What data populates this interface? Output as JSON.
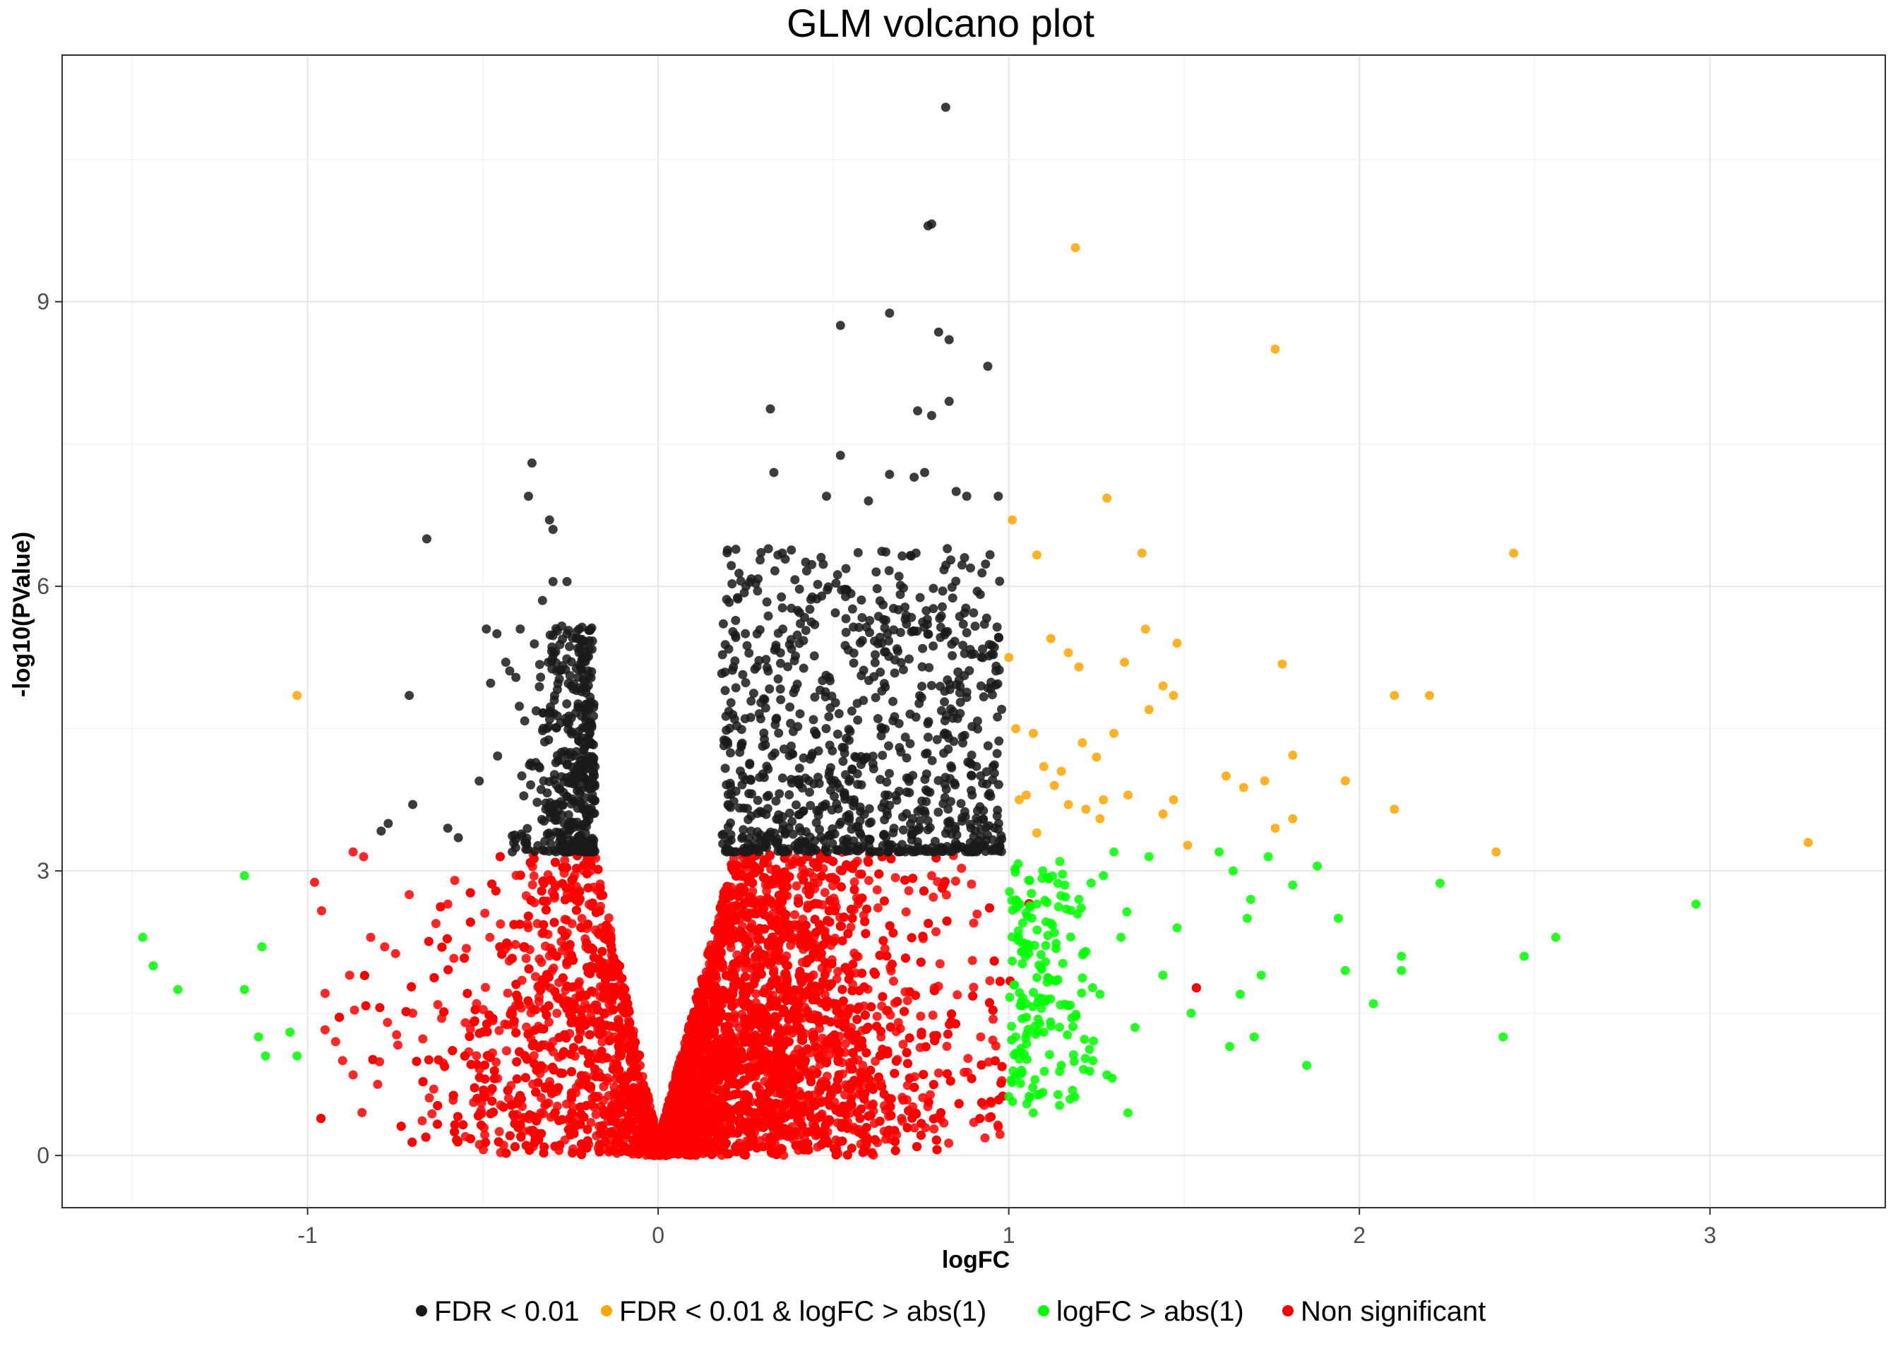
{
  "chart_data": {
    "type": "scatter",
    "title": "GLM volcano plot",
    "xlabel": "logFC",
    "ylabel": "-log10(PValue)",
    "xlim": [
      -1.7,
      3.5
    ],
    "ylim": [
      -0.55,
      11.6
    ],
    "x_ticks": [
      -1,
      0,
      1,
      2,
      3
    ],
    "x_tick_labels": [
      "-1",
      "0",
      "1",
      "2",
      "3"
    ],
    "y_ticks": [
      0,
      3,
      6,
      9
    ],
    "y_tick_labels": [
      "0",
      "3",
      "6",
      "9"
    ],
    "grid": true,
    "legend_position": "bottom",
    "series": [
      {
        "name": "FDR < 0.01",
        "color": "#1a1a1a",
        "points": [
          [
            0.82,
            11.05
          ],
          [
            0.78,
            9.82
          ],
          [
            0.77,
            9.8
          ],
          [
            0.66,
            8.88
          ],
          [
            0.52,
            8.75
          ],
          [
            0.8,
            8.68
          ],
          [
            0.83,
            8.6
          ],
          [
            0.94,
            8.32
          ],
          [
            0.32,
            7.87
          ],
          [
            0.83,
            7.95
          ],
          [
            0.74,
            7.85
          ],
          [
            0.78,
            7.8
          ],
          [
            0.52,
            7.38
          ],
          [
            0.33,
            7.2
          ],
          [
            0.66,
            7.18
          ],
          [
            0.73,
            7.15
          ],
          [
            0.76,
            7.2
          ],
          [
            -0.36,
            7.3
          ],
          [
            -0.37,
            6.95
          ],
          [
            -0.31,
            6.7
          ],
          [
            -0.66,
            6.5
          ],
          [
            -0.3,
            6.6
          ],
          [
            0.48,
            6.95
          ],
          [
            0.6,
            6.9
          ],
          [
            0.85,
            7.0
          ],
          [
            0.88,
            6.95
          ],
          [
            0.97,
            6.95
          ],
          [
            -0.71,
            4.85
          ],
          [
            -0.7,
            3.7
          ],
          [
            -0.77,
            3.5
          ],
          [
            -0.79,
            3.42
          ],
          [
            -0.6,
            3.45
          ],
          [
            -0.57,
            3.35
          ],
          [
            -0.3,
            6.05
          ],
          [
            -0.26,
            6.05
          ],
          [
            -0.33,
            5.85
          ],
          [
            -0.49,
            5.55
          ],
          [
            -0.46,
            5.5
          ],
          [
            -0.22,
            5.15
          ],
          [
            -0.19,
            5.1
          ]
        ]
      },
      {
        "name": "FDR < 0.01 & logFC > abs(1)",
        "color": "#ffa500",
        "points": [
          [
            -1.03,
            4.85
          ],
          [
            1.19,
            9.57
          ],
          [
            1.76,
            8.5
          ],
          [
            1.28,
            6.93
          ],
          [
            1.01,
            6.7
          ],
          [
            1.38,
            6.35
          ],
          [
            1.08,
            6.33
          ],
          [
            2.44,
            6.35
          ],
          [
            1.39,
            5.55
          ],
          [
            1.12,
            5.45
          ],
          [
            1.48,
            5.4
          ],
          [
            1.17,
            5.3
          ],
          [
            1.0,
            5.25
          ],
          [
            1.2,
            5.15
          ],
          [
            1.33,
            5.2
          ],
          [
            1.78,
            5.18
          ],
          [
            2.1,
            4.85
          ],
          [
            2.2,
            4.85
          ],
          [
            1.44,
            4.95
          ],
          [
            1.47,
            4.85
          ],
          [
            1.4,
            4.7
          ],
          [
            1.02,
            4.5
          ],
          [
            1.07,
            4.45
          ],
          [
            1.3,
            4.45
          ],
          [
            1.21,
            4.35
          ],
          [
            1.15,
            4.05
          ],
          [
            1.1,
            4.1
          ],
          [
            1.25,
            4.2
          ],
          [
            1.81,
            4.22
          ],
          [
            1.62,
            4.0
          ],
          [
            1.73,
            3.95
          ],
          [
            1.96,
            3.95
          ],
          [
            1.67,
            3.88
          ],
          [
            1.05,
            3.8
          ],
          [
            1.03,
            3.75
          ],
          [
            1.17,
            3.7
          ],
          [
            1.27,
            3.75
          ],
          [
            1.22,
            3.65
          ],
          [
            1.47,
            3.75
          ],
          [
            1.44,
            3.6
          ],
          [
            1.81,
            3.55
          ],
          [
            2.1,
            3.65
          ],
          [
            1.76,
            3.45
          ],
          [
            1.08,
            3.4
          ],
          [
            1.51,
            3.27
          ],
          [
            2.39,
            3.2
          ],
          [
            3.28,
            3.3
          ],
          [
            1.13,
            3.9
          ],
          [
            1.34,
            3.8
          ],
          [
            1.26,
            3.55
          ]
        ]
      },
      {
        "name": "logFC > abs(1)",
        "color": "#00ff00",
        "points": [
          [
            -1.47,
            2.3
          ],
          [
            -1.44,
            2.0
          ],
          [
            -1.37,
            1.75
          ],
          [
            -1.18,
            2.95
          ],
          [
            -1.13,
            2.2
          ],
          [
            -1.18,
            1.75
          ],
          [
            -1.14,
            1.25
          ],
          [
            -1.05,
            1.3
          ],
          [
            -1.12,
            1.05
          ],
          [
            -1.03,
            1.05
          ],
          [
            2.23,
            2.87
          ],
          [
            2.96,
            2.65
          ],
          [
            2.56,
            2.3
          ],
          [
            2.47,
            2.1
          ],
          [
            2.41,
            1.25
          ],
          [
            2.12,
            2.1
          ],
          [
            2.12,
            1.95
          ],
          [
            2.04,
            1.6
          ],
          [
            1.96,
            1.95
          ],
          [
            1.94,
            2.5
          ],
          [
            1.88,
            3.05
          ],
          [
            1.85,
            0.95
          ],
          [
            1.81,
            2.85
          ],
          [
            1.74,
            3.15
          ],
          [
            1.72,
            1.9
          ],
          [
            1.69,
            2.7
          ],
          [
            1.68,
            2.5
          ],
          [
            1.66,
            1.7
          ],
          [
            1.64,
            3.0
          ],
          [
            1.6,
            3.2
          ],
          [
            1.7,
            1.25
          ],
          [
            1.63,
            1.15
          ],
          [
            1.52,
            1.5
          ],
          [
            1.48,
            2.4
          ],
          [
            1.4,
            3.15
          ],
          [
            1.34,
            0.45
          ],
          [
            1.3,
            3.2
          ],
          [
            1.27,
            2.95
          ],
          [
            1.24,
            1.0
          ],
          [
            1.2,
            2.7
          ],
          [
            1.16,
            2.85
          ],
          [
            1.12,
            1.85
          ],
          [
            1.08,
            2.65
          ],
          [
            1.05,
            1.6
          ],
          [
            1.03,
            0.85
          ],
          [
            1.02,
            1.25
          ],
          [
            1.07,
            0.45
          ],
          [
            1.04,
            2.45
          ],
          [
            1.1,
            1.3
          ],
          [
            1.15,
            0.95
          ],
          [
            1.22,
            2.15
          ],
          [
            1.26,
            1.7
          ],
          [
            1.32,
            2.3
          ],
          [
            1.36,
            1.35
          ],
          [
            1.44,
            1.9
          ],
          [
            1.01,
            2.05
          ],
          [
            1.06,
            2.9
          ],
          [
            1.13,
            2.35
          ],
          [
            1.18,
            1.45
          ],
          [
            1.28,
            0.85
          ]
        ]
      },
      {
        "name": "Non significant",
        "color": "#ff0000",
        "points": [
          [
            -0.98,
            2.88
          ],
          [
            -0.96,
            2.58
          ],
          [
            -0.87,
            3.2
          ],
          [
            -0.84,
            3.15
          ],
          [
            -0.71,
            2.75
          ],
          [
            -0.6,
            2.65
          ],
          [
            -0.58,
            2.9
          ],
          [
            -0.82,
            2.3
          ],
          [
            -0.78,
            2.2
          ],
          [
            -0.88,
            1.9
          ],
          [
            -0.9,
            1.0
          ],
          [
            -0.92,
            1.2
          ],
          [
            -0.87,
            0.85
          ],
          [
            -0.8,
            0.75
          ],
          [
            -0.7,
            1.5
          ],
          [
            -0.64,
            0.7
          ],
          [
            -0.55,
            1.4
          ],
          [
            -0.48,
            2.3
          ],
          [
            -0.4,
            0.55
          ],
          [
            -0.3,
            1.2
          ],
          [
            0.92,
            1.25
          ],
          [
            0.9,
            2.45
          ],
          [
            0.95,
            0.55
          ],
          [
            0.97,
            0.3
          ],
          [
            0.68,
            0.22
          ],
          [
            0.58,
            0.8
          ],
          [
            0.4,
            1.6
          ],
          [
            0.3,
            2.6
          ],
          [
            0.25,
            0.55
          ],
          [
            0.78,
            2.95
          ]
        ]
      }
    ],
    "bulk_clouds": {
      "note_is_generated": false,
      "left_v_black_count": 420,
      "right_v_black_count": 900,
      "red_count": 7000,
      "green_count": 160,
      "significance_threshold": 3.2
    }
  }
}
